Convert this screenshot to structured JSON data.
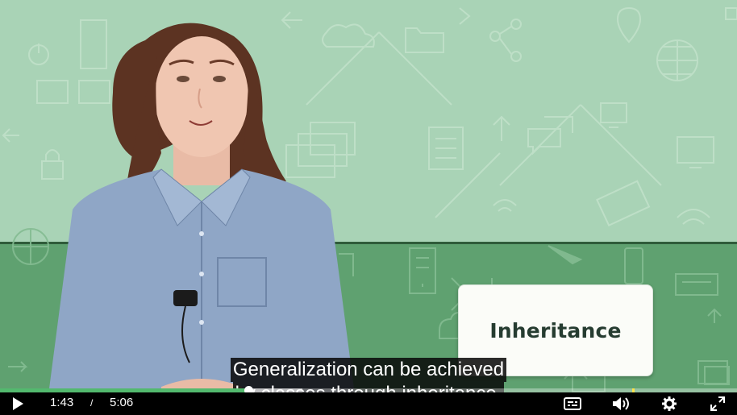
{
  "video": {
    "card_title": "Inheritance",
    "captions": [
      "Generalization can be achieved",
      "by classes through inheritance."
    ],
    "colors": {
      "bg_light": "#a9d3b6",
      "bg_dark": "#5fa170",
      "progress": "#53b96e"
    }
  },
  "player": {
    "current_time": "1:43",
    "separator": "/",
    "duration": "5:06",
    "progress_fraction": 0.337,
    "buffered_fraction": 0.41,
    "marker_fraction": 0.858,
    "icons": {
      "play": "play-icon",
      "captions": "captions-icon",
      "volume": "volume-icon",
      "settings": "gear-icon",
      "fullscreen": "fullscreen-icon"
    }
  }
}
